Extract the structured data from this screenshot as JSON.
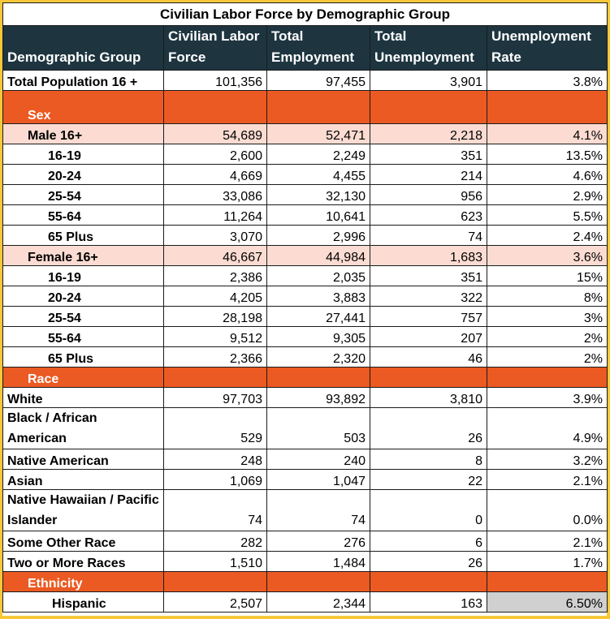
{
  "title": "Civilian Labor Force by Demographic Group",
  "headers": [
    "Demographic Group",
    "Civilian Labor Force",
    "Total Employment",
    "Total Unemployment",
    "Unemployment Rate"
  ],
  "total": {
    "label": "Total Population 16 +",
    "labor_force": "101,356",
    "employment": "97,455",
    "unemployment": "3,901",
    "rate": "3.8%"
  },
  "sections": {
    "sex": "Sex",
    "race": "Race",
    "ethnicity": "Ethnicity"
  },
  "male": {
    "summary": {
      "label": "Male 16+",
      "labor_force": "54,689",
      "employment": "52,471",
      "unemployment": "2,218",
      "rate": "4.1%"
    },
    "rows": [
      {
        "label": "16-19",
        "labor_force": "2,600",
        "employment": "2,249",
        "unemployment": "351",
        "rate": "13.5%"
      },
      {
        "label": "20-24",
        "labor_force": "4,669",
        "employment": "4,455",
        "unemployment": "214",
        "rate": "4.6%"
      },
      {
        "label": "25-54",
        "labor_force": "33,086",
        "employment": "32,130",
        "unemployment": "956",
        "rate": "2.9%"
      },
      {
        "label": "55-64",
        "labor_force": "11,264",
        "employment": "10,641",
        "unemployment": "623",
        "rate": "5.5%"
      },
      {
        "label": "65 Plus",
        "labor_force": "3,070",
        "employment": "2,996",
        "unemployment": "74",
        "rate": "2.4%"
      }
    ]
  },
  "female": {
    "summary": {
      "label": "Female 16+",
      "labor_force": "46,667",
      "employment": "44,984",
      "unemployment": "1,683",
      "rate": "3.6%"
    },
    "rows": [
      {
        "label": "16-19",
        "labor_force": "2,386",
        "employment": "2,035",
        "unemployment": "351",
        "rate": "15%"
      },
      {
        "label": "20-24",
        "labor_force": "4,205",
        "employment": "3,883",
        "unemployment": "322",
        "rate": "8%"
      },
      {
        "label": "25-54",
        "labor_force": "28,198",
        "employment": "27,441",
        "unemployment": "757",
        "rate": "3%"
      },
      {
        "label": "55-64",
        "labor_force": "9,512",
        "employment": "9,305",
        "unemployment": "207",
        "rate": "2%"
      },
      {
        "label": "65 Plus",
        "labor_force": "2,366",
        "employment": "2,320",
        "unemployment": "46",
        "rate": "2%"
      }
    ]
  },
  "race": [
    {
      "label": "White",
      "labor_force": "97,703",
      "employment": "93,892",
      "unemployment": "3,810",
      "rate": "3.9%"
    },
    {
      "label": "Black / African American",
      "labor_force": "529",
      "employment": "503",
      "unemployment": "26",
      "rate": "4.9%"
    },
    {
      "label": "Native American",
      "labor_force": "248",
      "employment": "240",
      "unemployment": "8",
      "rate": "3.2%"
    },
    {
      "label": "Asian",
      "labor_force": "1,069",
      "employment": "1,047",
      "unemployment": "22",
      "rate": "2.1%"
    },
    {
      "label": "Native Hawaiian / Pacific Islander",
      "labor_force": "74",
      "employment": "74",
      "unemployment": "0",
      "rate": "0.0%"
    },
    {
      "label": "Some Other Race",
      "labor_force": "282",
      "employment": "276",
      "unemployment": "6",
      "rate": "2.1%"
    },
    {
      "label": "Two or More Races",
      "labor_force": "1,510",
      "employment": "1,484",
      "unemployment": "26",
      "rate": "1.7%"
    }
  ],
  "hispanic": {
    "label": "Hispanic",
    "labor_force": "2,507",
    "employment": "2,344",
    "unemployment": "163",
    "rate": "6.50%"
  }
}
